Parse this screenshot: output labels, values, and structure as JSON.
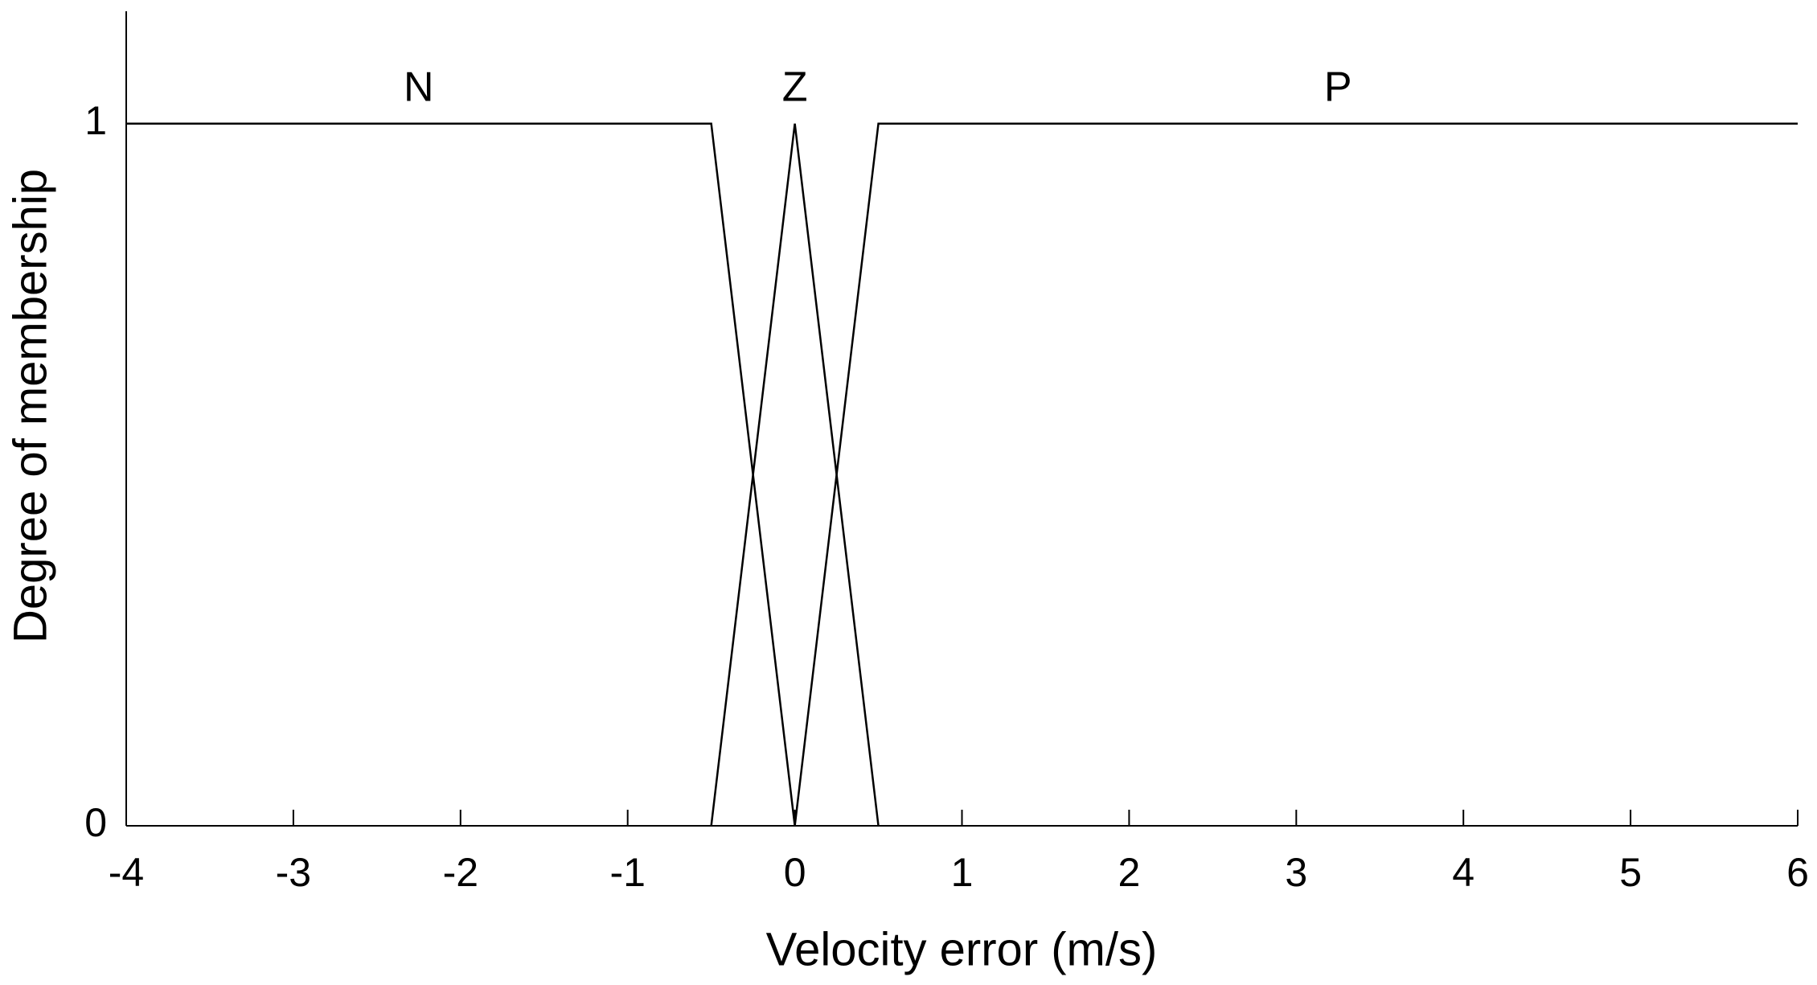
{
  "chart_data": {
    "type": "line",
    "xlabel": "Velocity error (m/s)",
    "ylabel": "Degree of membership",
    "xlim": [
      -4,
      6
    ],
    "ylim": [
      0,
      1.16
    ],
    "xticks": [
      -4,
      -3,
      -2,
      -1,
      0,
      1,
      2,
      3,
      4,
      5,
      6
    ],
    "yticks": [
      0,
      1
    ],
    "grid": false,
    "series": [
      {
        "name": "N",
        "color": "#000000",
        "x": [
          -4,
          -0.5,
          0
        ],
        "values": [
          1,
          1,
          0
        ]
      },
      {
        "name": "Z",
        "color": "#000000",
        "x": [
          -0.5,
          0,
          0.5
        ],
        "values": [
          0,
          1,
          0
        ]
      },
      {
        "name": "P",
        "color": "#000000",
        "x": [
          0,
          0.5,
          6
        ],
        "values": [
          0,
          1,
          1
        ]
      }
    ]
  }
}
